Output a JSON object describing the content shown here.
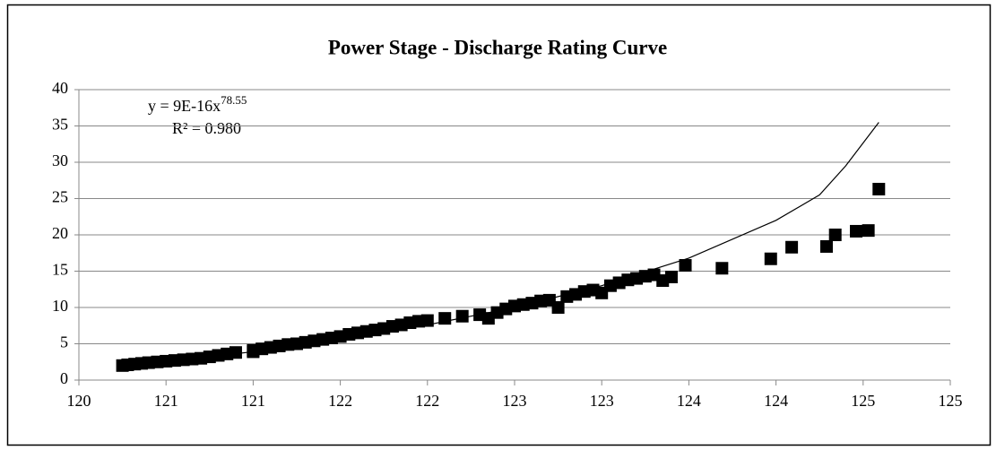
{
  "chart_data": {
    "type": "scatter",
    "title": "Power Stage - Discharge Rating Curve",
    "annotations": {
      "equation": "y = 9E-16x",
      "exponent": "78.55",
      "r_squared": "R² = 0.980"
    },
    "xlim": [
      120,
      125
    ],
    "xticks": [
      {
        "value": 120,
        "label": "120"
      },
      {
        "value": 120.5,
        "label": "121"
      },
      {
        "value": 121,
        "label": "121"
      },
      {
        "value": 121.5,
        "label": "122"
      },
      {
        "value": 122,
        "label": "122"
      },
      {
        "value": 122.5,
        "label": "123"
      },
      {
        "value": 123,
        "label": "123"
      },
      {
        "value": 123.5,
        "label": "124"
      },
      {
        "value": 124,
        "label": "124"
      },
      {
        "value": 124.5,
        "label": "125"
      },
      {
        "value": 125,
        "label": "125"
      }
    ],
    "ylim": [
      0,
      40
    ],
    "yticks": [
      0,
      5,
      10,
      15,
      20,
      25,
      30,
      35,
      40
    ],
    "grid": true,
    "color": "#000000",
    "x": [
      120.25,
      120.28,
      120.32,
      120.36,
      120.4,
      120.45,
      120.5,
      120.55,
      120.6,
      120.65,
      120.7,
      120.75,
      120.8,
      120.85,
      120.9,
      121.0,
      121.0,
      121.05,
      121.1,
      121.15,
      121.2,
      121.25,
      121.3,
      121.35,
      121.4,
      121.45,
      121.5,
      121.55,
      121.6,
      121.65,
      121.7,
      121.75,
      121.8,
      121.85,
      121.9,
      121.95,
      122.0,
      122.1,
      122.2,
      122.3,
      122.35,
      122.4,
      122.45,
      122.5,
      122.55,
      122.6,
      122.65,
      122.7,
      122.75,
      122.8,
      122.85,
      122.9,
      122.95,
      123.0,
      123.05,
      123.1,
      123.15,
      123.2,
      123.25,
      123.3,
      123.35,
      123.4,
      123.48,
      123.69,
      123.97,
      124.09,
      124.29,
      124.34,
      124.46,
      124.53,
      124.59
    ],
    "values": [
      2.0,
      2.1,
      2.2,
      2.3,
      2.4,
      2.5,
      2.6,
      2.7,
      2.8,
      2.9,
      3.0,
      3.2,
      3.4,
      3.6,
      3.8,
      4.1,
      3.9,
      4.3,
      4.5,
      4.7,
      4.9,
      5.0,
      5.2,
      5.4,
      5.6,
      5.8,
      6.0,
      6.3,
      6.5,
      6.7,
      6.9,
      7.1,
      7.4,
      7.6,
      7.9,
      8.1,
      8.2,
      8.5,
      8.8,
      9.0,
      8.5,
      9.3,
      9.8,
      10.2,
      10.4,
      10.6,
      10.9,
      11.0,
      10.0,
      11.5,
      11.8,
      12.2,
      12.4,
      12.0,
      13.0,
      13.4,
      13.8,
      14.0,
      14.3,
      14.5,
      13.7,
      14.2,
      15.8,
      15.4,
      16.7,
      18.3,
      18.4,
      20.0,
      20.5,
      20.6,
      26.3
    ],
    "trendline": {
      "color": "#000000",
      "x": [
        120.25,
        120.5,
        121,
        121.5,
        122,
        122.5,
        123,
        123.5,
        124,
        124.25,
        124.4,
        124.59
      ],
      "values": [
        2.0,
        2.6,
        3.9,
        5.6,
        7.6,
        10.0,
        13.0,
        16.8,
        22.0,
        25.5,
        29.5,
        35.5
      ]
    }
  }
}
